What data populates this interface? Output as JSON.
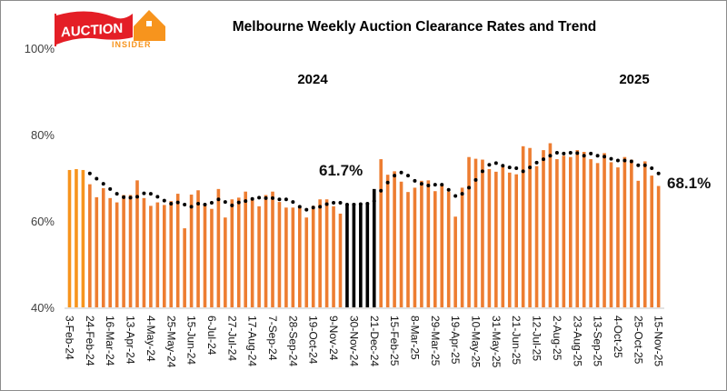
{
  "logo": {
    "text_main": "AUCTION",
    "text_sub": "INSIDER"
  },
  "chart_data": {
    "type": "bar",
    "title": "Melbourne Weekly Auction Clearance Rates and Trend",
    "ylim": [
      40,
      100
    ],
    "yticks": [
      "40%",
      "60%",
      "80%",
      "100%"
    ],
    "ytick_values": [
      40,
      60,
      80,
      100
    ],
    "grid": false,
    "legend": "none",
    "year_labels": [
      "2024",
      "2025"
    ],
    "x_tick_labels": [
      "3-Feb-24",
      "24-Feb-24",
      "16-Mar-24",
      "13-Apr-24",
      "4-May-24",
      "25-May-24",
      "15-Jun-24",
      "6-Jul-24",
      "27-Jul-24",
      "17-Aug-24",
      "7-Sep-24",
      "28-Sep-24",
      "19-Oct-24",
      "9-Nov-24",
      "30-Nov-24",
      "21-Dec-24",
      "15-Feb-25",
      "8-Mar-25",
      "29-Mar-25",
      "19-Apr-25",
      "10-May-25",
      "31-May-25",
      "21-Jun-25",
      "12-Jul-25",
      "2-Aug-25",
      "23-Aug-25",
      "13-Sep-25",
      "4-Oct-25",
      "25-Oct-25",
      "15-Nov-25"
    ],
    "x_tick_every": 3,
    "series": [
      {
        "type": "bar",
        "values": [
          71.8,
          72.0,
          71.8,
          68.5,
          65.5,
          67.6,
          65.3,
          64.3,
          66.0,
          66.0,
          69.4,
          65.3,
          63.5,
          64.3,
          63.7,
          64.6,
          66.3,
          58.3,
          66.1,
          67.1,
          63.5,
          62.8,
          67.4,
          60.8,
          65.0,
          65.4,
          66.8,
          65.0,
          63.4,
          66.0,
          66.8,
          64.4,
          63.1,
          63.1,
          63.1,
          60.8,
          63.5,
          65.0,
          65.0,
          63.4,
          61.7,
          63.9,
          64.1,
          64.1,
          64.1,
          67.4,
          74.3,
          70.7,
          71.5,
          69.1,
          66.7,
          67.7,
          69.3,
          69.4,
          66.9,
          68.5,
          66.8,
          61.0,
          67.7,
          74.8,
          74.4,
          74.2,
          72.0,
          71.4,
          72.5,
          71.2,
          70.8,
          77.3,
          76.9,
          72.7,
          76.4,
          78.0,
          74.3,
          75.1,
          74.8,
          76.4,
          76.0,
          74.3,
          73.4,
          75.7,
          73.6,
          72.4,
          74.8,
          74.2,
          69.3,
          73.8,
          70.5,
          68.1
        ]
      },
      {
        "type": "dotted-line",
        "values": [
          null,
          null,
          null,
          71.0,
          69.8,
          68.6,
          67.4,
          66.3,
          65.5,
          65.4,
          65.6,
          66.4,
          66.3,
          65.6,
          64.7,
          64.0,
          64.3,
          63.8,
          63.3,
          64.0,
          63.8,
          64.2,
          65.0,
          64.4,
          63.6,
          64.3,
          64.6,
          65.1,
          65.4,
          65.3,
          65.3,
          65.0,
          65.0,
          64.4,
          63.3,
          62.6,
          63.1,
          63.3,
          63.9,
          64.2,
          64.2,
          63.8,
          63.8,
          63.9,
          64.0,
          64.6,
          67.0,
          68.9,
          70.5,
          71.2,
          70.5,
          69.3,
          68.6,
          68.2,
          68.4,
          68.4,
          67.2,
          65.8,
          66.3,
          67.7,
          69.5,
          71.5,
          73.0,
          73.4,
          72.8,
          72.4,
          72.2,
          71.5,
          72.4,
          73.5,
          74.3,
          75.1,
          75.8,
          75.6,
          75.8,
          75.7,
          75.1,
          75.6,
          75.1,
          74.9,
          74.4,
          74.0,
          74.0,
          73.8,
          72.9,
          72.9,
          72.2,
          71.0
        ]
      }
    ],
    "highlight_black_indices": [
      41,
      42,
      43,
      44,
      45
    ],
    "light_orange_indices": [
      0,
      1,
      2
    ],
    "annotations": [
      "61.7%",
      "68.1%"
    ],
    "colors": {
      "bar": "#ED7D31",
      "bar_light": "#F7941D",
      "bar_highlight": "#000000",
      "trend": "#000000",
      "axis": "#d9d9d9"
    }
  }
}
